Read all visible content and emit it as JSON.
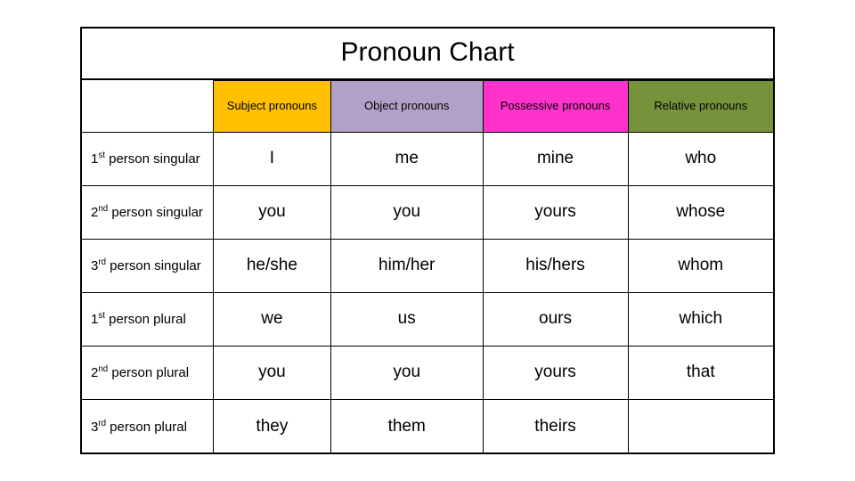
{
  "title": "Pronoun Chart",
  "title_fontsize": 30,
  "background_color": "#ffffff",
  "border_color": "#000000",
  "columns": [
    {
      "label": "Subject pronouns",
      "bg": "#ffc000",
      "width_pct": 17
    },
    {
      "label": "Object pronouns",
      "bg": "#b1a0c7",
      "width_pct": 22
    },
    {
      "label": "Possessive pronouns",
      "bg": "#ff33cc",
      "width_pct": 21
    },
    {
      "label": "Relative pronouns",
      "bg": "#76933c",
      "width_pct": 21
    }
  ],
  "rowhead_width_pct": 19,
  "header_fontsize": 13,
  "rowhead_fontsize": 15,
  "cell_fontsize": 19,
  "rows": [
    {
      "ord": "1",
      "ord_suffix": "st",
      "label_rest": " person singular",
      "cells": [
        "I",
        "me",
        "mine",
        "who"
      ]
    },
    {
      "ord": "2",
      "ord_suffix": "nd",
      "label_rest": " person singular",
      "cells": [
        "you",
        "you",
        "yours",
        "whose"
      ]
    },
    {
      "ord": "3",
      "ord_suffix": "rd",
      "label_rest": " person singular",
      "cells": [
        "he/she",
        "him/her",
        "his/hers",
        "whom"
      ]
    },
    {
      "ord": "1",
      "ord_suffix": "st",
      "label_rest": " person plural",
      "cells": [
        "we",
        "us",
        "ours",
        "which"
      ]
    },
    {
      "ord": "2",
      "ord_suffix": "nd",
      "label_rest": " person plural",
      "cells": [
        "you",
        "you",
        "yours",
        "that"
      ]
    },
    {
      "ord": "3",
      "ord_suffix": "rd",
      "label_rest": " person plural",
      "cells": [
        "they",
        "them",
        "theirs",
        ""
      ]
    }
  ]
}
